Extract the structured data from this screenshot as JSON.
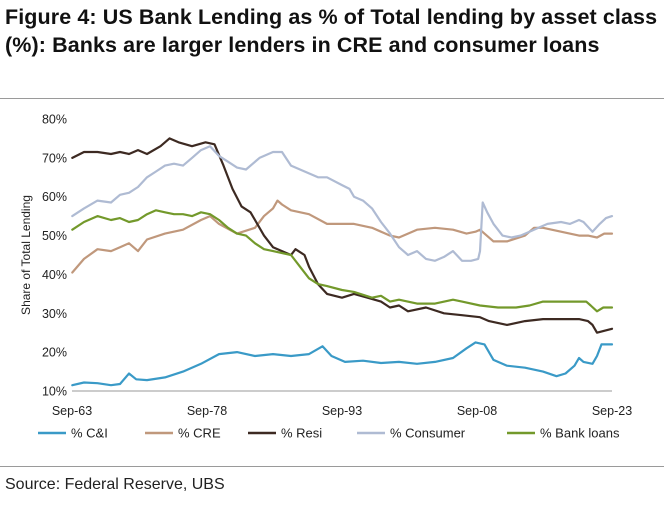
{
  "figure": {
    "title": "Figure 4: US Bank Lending as % of Total lending by asset class (%): Banks are larger lenders in CRE and consumer loans",
    "source": "Source: Federal Reserve, UBS"
  },
  "chart_data": {
    "type": "line",
    "xlabel": "",
    "ylabel": "Share of Total Lending",
    "ylim": [
      10,
      80
    ],
    "y_ticks": [
      "10%",
      "20%",
      "30%",
      "40%",
      "50%",
      "60%",
      "70%",
      "80%"
    ],
    "xlim": [
      1963.67,
      2023.67
    ],
    "x_ticks": [
      {
        "label": "Sep-63",
        "x": 1963.67
      },
      {
        "label": "Sep-78",
        "x": 1978.67
      },
      {
        "label": "Sep-93",
        "x": 1993.67
      },
      {
        "label": "Sep-08",
        "x": 2008.67
      },
      {
        "label": "Sep-23",
        "x": 2023.67
      }
    ],
    "grid": false,
    "legend_position": "bottom",
    "series": [
      {
        "name": "% C&I",
        "color": "#3a9ac7",
        "points": [
          [
            1963.7,
            11.5
          ],
          [
            1965,
            12.2
          ],
          [
            1966.5,
            12.0
          ],
          [
            1968,
            11.5
          ],
          [
            1969,
            11.8
          ],
          [
            1970,
            14.5
          ],
          [
            1970.8,
            13
          ],
          [
            1972,
            12.8
          ],
          [
            1974,
            13.5
          ],
          [
            1976,
            15
          ],
          [
            1978,
            17
          ],
          [
            1980,
            19.5
          ],
          [
            1982,
            20
          ],
          [
            1984,
            19
          ],
          [
            1986,
            19.5
          ],
          [
            1988,
            19
          ],
          [
            1990,
            19.5
          ],
          [
            1991.5,
            21.5
          ],
          [
            1992.5,
            19
          ],
          [
            1994,
            17.5
          ],
          [
            1996,
            17.8
          ],
          [
            1998,
            17.2
          ],
          [
            2000,
            17.5
          ],
          [
            2002,
            17
          ],
          [
            2004,
            17.5
          ],
          [
            2006,
            18.5
          ],
          [
            2007.5,
            21
          ],
          [
            2008.5,
            22.5
          ],
          [
            2009.5,
            22
          ],
          [
            2010.5,
            18
          ],
          [
            2012,
            16.5
          ],
          [
            2014,
            16
          ],
          [
            2016,
            15
          ],
          [
            2017.5,
            13.8
          ],
          [
            2018.5,
            14.5
          ],
          [
            2019.5,
            16.5
          ],
          [
            2020,
            18.5
          ],
          [
            2020.5,
            17.5
          ],
          [
            2021.5,
            17
          ],
          [
            2022,
            19
          ],
          [
            2022.5,
            22
          ],
          [
            2023.67,
            22
          ]
        ]
      },
      {
        "name": "% CRE",
        "color": "#c0987c",
        "points": [
          [
            1963.7,
            40.5
          ],
          [
            1965,
            44
          ],
          [
            1966.5,
            46.5
          ],
          [
            1968,
            46
          ],
          [
            1969,
            47
          ],
          [
            1970,
            48
          ],
          [
            1971,
            46
          ],
          [
            1972,
            49
          ],
          [
            1974,
            50.5
          ],
          [
            1976,
            51.5
          ],
          [
            1978,
            54
          ],
          [
            1979,
            55
          ],
          [
            1980,
            53
          ],
          [
            1982,
            50.5
          ],
          [
            1984,
            52
          ],
          [
            1985,
            55
          ],
          [
            1986,
            57
          ],
          [
            1986.5,
            59
          ],
          [
            1987,
            58
          ],
          [
            1988,
            56.5
          ],
          [
            1990,
            55.5
          ],
          [
            1992,
            53
          ],
          [
            1993.67,
            53
          ],
          [
            1995,
            53
          ],
          [
            1997,
            52
          ],
          [
            1999,
            50
          ],
          [
            2000,
            49.5
          ],
          [
            2002,
            51.5
          ],
          [
            2004,
            52
          ],
          [
            2006,
            51.5
          ],
          [
            2007.5,
            50.5
          ],
          [
            2008.5,
            51
          ],
          [
            2009,
            51.5
          ],
          [
            2010.5,
            48.5
          ],
          [
            2012,
            48.5
          ],
          [
            2014,
            50
          ],
          [
            2015,
            52
          ],
          [
            2016,
            52
          ],
          [
            2018,
            51
          ],
          [
            2020,
            50
          ],
          [
            2021,
            50
          ],
          [
            2022,
            49.5
          ],
          [
            2022.8,
            50.5
          ],
          [
            2023.67,
            50.5
          ]
        ]
      },
      {
        "name": "% Resi",
        "color": "#3d2a22",
        "points": [
          [
            1963.7,
            70
          ],
          [
            1965,
            71.5
          ],
          [
            1966.5,
            71.5
          ],
          [
            1968,
            71
          ],
          [
            1969,
            71.5
          ],
          [
            1970,
            71
          ],
          [
            1971,
            72
          ],
          [
            1972,
            71
          ],
          [
            1973.5,
            73
          ],
          [
            1974.5,
            75
          ],
          [
            1975.5,
            74
          ],
          [
            1977,
            73
          ],
          [
            1978.5,
            74
          ],
          [
            1979.5,
            73.5
          ],
          [
            1980.5,
            68
          ],
          [
            1981.5,
            62
          ],
          [
            1982.5,
            57.5
          ],
          [
            1983.5,
            56
          ],
          [
            1984,
            54
          ],
          [
            1985,
            50
          ],
          [
            1986,
            47
          ],
          [
            1987,
            46
          ],
          [
            1988,
            45
          ],
          [
            1988.5,
            46.5
          ],
          [
            1989.5,
            45
          ],
          [
            1990,
            42
          ],
          [
            1991,
            37.5
          ],
          [
            1992,
            35
          ],
          [
            1993.67,
            34
          ],
          [
            1995,
            35
          ],
          [
            1996.5,
            34
          ],
          [
            1998,
            33
          ],
          [
            1999,
            31.5
          ],
          [
            2000,
            32
          ],
          [
            2001,
            30.5
          ],
          [
            2003,
            31.5
          ],
          [
            2005,
            30
          ],
          [
            2007,
            29.5
          ],
          [
            2009,
            29
          ],
          [
            2010,
            28
          ],
          [
            2012,
            27
          ],
          [
            2014,
            28
          ],
          [
            2016,
            28.5
          ],
          [
            2018,
            28.5
          ],
          [
            2020,
            28.5
          ],
          [
            2021,
            28
          ],
          [
            2021.5,
            27
          ],
          [
            2022,
            25
          ],
          [
            2022.8,
            25.5
          ],
          [
            2023.67,
            26
          ]
        ]
      },
      {
        "name": "% Consumer",
        "color": "#afbbd3",
        "points": [
          [
            1963.7,
            55
          ],
          [
            1965,
            57
          ],
          [
            1966.5,
            59
          ],
          [
            1968,
            58.5
          ],
          [
            1969,
            60.5
          ],
          [
            1970,
            61
          ],
          [
            1971,
            62.5
          ],
          [
            1972,
            65
          ],
          [
            1973,
            66.5
          ],
          [
            1974,
            68
          ],
          [
            1975,
            68.5
          ],
          [
            1976,
            68
          ],
          [
            1977,
            70
          ],
          [
            1978,
            72
          ],
          [
            1979,
            73
          ],
          [
            1980,
            70.5
          ],
          [
            1981,
            69
          ],
          [
            1982,
            67.5
          ],
          [
            1983,
            67
          ],
          [
            1984.5,
            70
          ],
          [
            1986,
            71.5
          ],
          [
            1987,
            71.5
          ],
          [
            1988,
            68
          ],
          [
            1989,
            67
          ],
          [
            1990,
            66
          ],
          [
            1991,
            65
          ],
          [
            1992,
            65
          ],
          [
            1993.67,
            63
          ],
          [
            1994.5,
            62
          ],
          [
            1995,
            60
          ],
          [
            1996,
            59
          ],
          [
            1997,
            57
          ],
          [
            1998,
            53.5
          ],
          [
            1999,
            50.5
          ],
          [
            2000,
            47
          ],
          [
            2001,
            45
          ],
          [
            2002,
            46
          ],
          [
            2003,
            44
          ],
          [
            2004,
            43.5
          ],
          [
            2005,
            44.5
          ],
          [
            2006,
            46
          ],
          [
            2007,
            43.5
          ],
          [
            2008,
            43.5
          ],
          [
            2008.8,
            44
          ],
          [
            2009,
            46
          ],
          [
            2009.3,
            58.5
          ],
          [
            2009.8,
            56
          ],
          [
            2010.5,
            53
          ],
          [
            2011.5,
            50
          ],
          [
            2012.5,
            49.5
          ],
          [
            2013.5,
            50
          ],
          [
            2014.5,
            51
          ],
          [
            2015.5,
            52
          ],
          [
            2016.5,
            53
          ],
          [
            2018,
            53.5
          ],
          [
            2019,
            53
          ],
          [
            2020,
            54
          ],
          [
            2020.5,
            53.5
          ],
          [
            2021.5,
            51
          ],
          [
            2022.3,
            53
          ],
          [
            2023,
            54.5
          ],
          [
            2023.67,
            55
          ]
        ]
      },
      {
        "name": "% Bank loans",
        "color": "#73992b",
        "points": [
          [
            1963.7,
            51.5
          ],
          [
            1965,
            53.5
          ],
          [
            1966.5,
            55
          ],
          [
            1968,
            54
          ],
          [
            1969,
            54.5
          ],
          [
            1970,
            53.5
          ],
          [
            1971,
            54
          ],
          [
            1972,
            55.5
          ],
          [
            1973,
            56.5
          ],
          [
            1974,
            56
          ],
          [
            1975,
            55.5
          ],
          [
            1976,
            55.5
          ],
          [
            1977,
            55
          ],
          [
            1978,
            56
          ],
          [
            1979,
            55.5
          ],
          [
            1980,
            54
          ],
          [
            1981,
            52
          ],
          [
            1982,
            50.5
          ],
          [
            1983,
            50
          ],
          [
            1984,
            48
          ],
          [
            1985,
            46.5
          ],
          [
            1986,
            46
          ],
          [
            1987,
            45.5
          ],
          [
            1988,
            45
          ],
          [
            1989,
            42
          ],
          [
            1990,
            39
          ],
          [
            1991,
            37.5
          ],
          [
            1992,
            37
          ],
          [
            1993.67,
            36
          ],
          [
            1995,
            35.5
          ],
          [
            1997,
            34
          ],
          [
            1998,
            34.5
          ],
          [
            1999,
            33
          ],
          [
            2000,
            33.5
          ],
          [
            2002,
            32.5
          ],
          [
            2004,
            32.5
          ],
          [
            2006,
            33.5
          ],
          [
            2007,
            33
          ],
          [
            2009,
            32
          ],
          [
            2011,
            31.5
          ],
          [
            2013,
            31.5
          ],
          [
            2014.5,
            32
          ],
          [
            2016,
            33
          ],
          [
            2018,
            33
          ],
          [
            2020,
            33
          ],
          [
            2020.8,
            33
          ],
          [
            2021.3,
            32
          ],
          [
            2022,
            30.5
          ],
          [
            2022.7,
            31.5
          ],
          [
            2023.67,
            31.5
          ]
        ]
      }
    ]
  }
}
